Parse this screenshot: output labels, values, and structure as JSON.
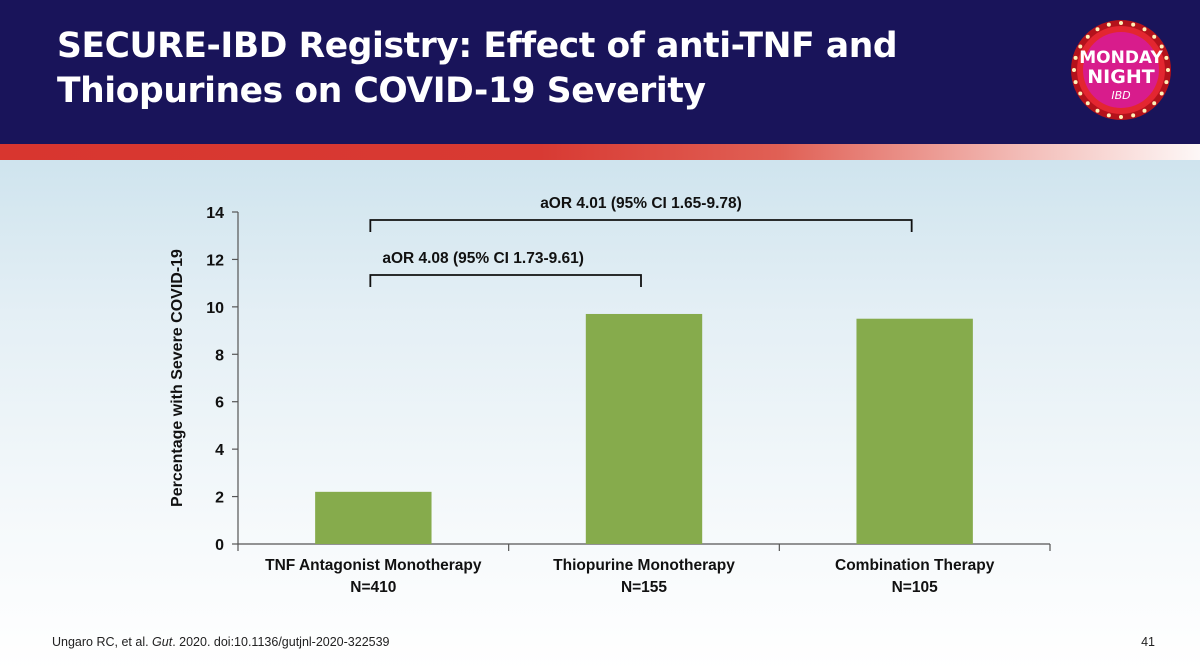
{
  "slide": {
    "title_line1": "SECURE-IBD Registry: Effect of anti-TNF and",
    "title_line2": "Thiopurines on COVID-19 Severity",
    "logo_text": [
      "MONDAY",
      "NIGHT",
      "IBD"
    ],
    "footer_author": "Ungaro RC, et al. ",
    "footer_journal": "Gut",
    "footer_rest": ". 2020. doi:10.1136/gutjnl-2020-322539",
    "page_number": "41",
    "colors": {
      "header": "#19145a",
      "stripe": "#d8362f",
      "bar": "#86ab4c"
    }
  },
  "chart_data": {
    "type": "bar",
    "categories": [
      [
        "TNF Antagonist Monotherapy",
        "N=410"
      ],
      [
        "Thiopurine Monotherapy",
        "N=155"
      ],
      [
        "Combination Therapy",
        "N=105"
      ]
    ],
    "values": [
      2.2,
      9.7,
      9.5
    ],
    "ylabel": "Percentage with Severe COVID-19",
    "ylim": [
      0,
      14
    ],
    "yticks": [
      0,
      2,
      4,
      6,
      8,
      10,
      12,
      14
    ],
    "grid": false,
    "annotations": [
      {
        "text": "aOR 4.01 (95% CI 1.65-9.78)",
        "from": 0,
        "to": 2
      },
      {
        "text": "aOR 4.08 (95% CI 1.73-9.61)",
        "from": 0,
        "to": 1
      }
    ]
  }
}
